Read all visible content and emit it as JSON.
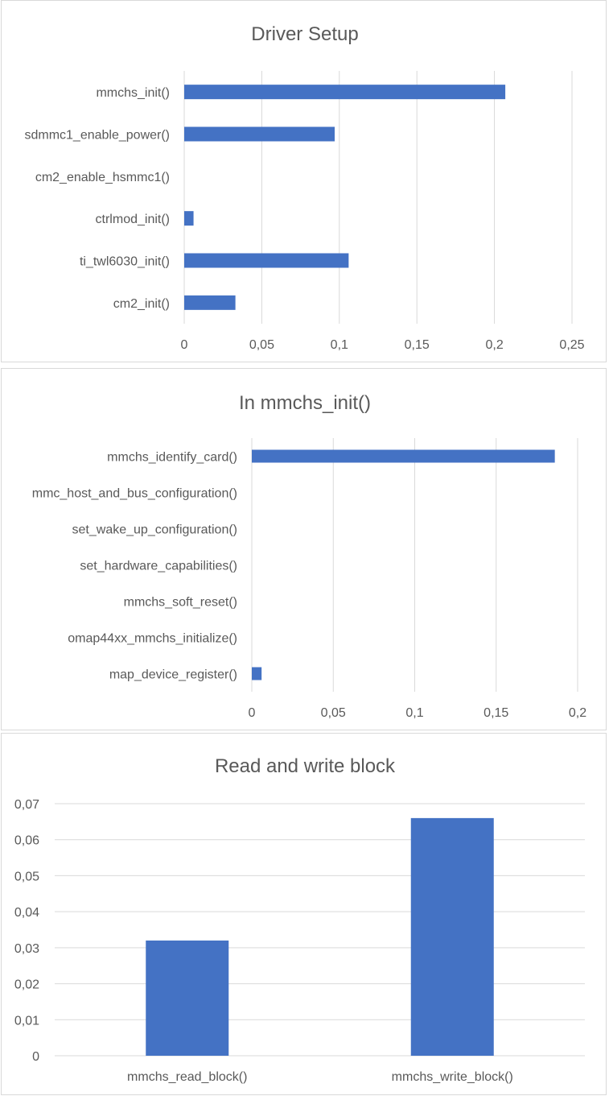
{
  "chart_data": [
    {
      "type": "bar",
      "orientation": "horizontal",
      "title": "Driver Setup",
      "categories": [
        "mmchs_init()",
        "sdmmc1_enable_power()",
        "cm2_enable_hsmmc1()",
        "ctrlmod_init()",
        "ti_twl6030_init()",
        "cm2_init()"
      ],
      "values": [
        0.207,
        0.097,
        0.0,
        0.006,
        0.106,
        0.033
      ],
      "xlim": [
        0,
        0.25
      ],
      "ticks": [
        0,
        0.05,
        0.1,
        0.15,
        0.2,
        0.25
      ],
      "tick_labels": [
        "0",
        "0,05",
        "0,1",
        "0,15",
        "0,2",
        "0,25"
      ],
      "grid": true,
      "bar_color": "#4472c4"
    },
    {
      "type": "bar",
      "orientation": "horizontal",
      "title": "In mmchs_init()",
      "categories": [
        "mmchs_identify_card()",
        "mmc_host_and_bus_configuration()",
        "set_wake_up_configuration()",
        "set_hardware_capabilities()",
        "mmchs_soft_reset()",
        "omap44xx_mmchs_initialize()",
        "map_device_register()"
      ],
      "values": [
        0.186,
        0.0,
        0.0,
        0.0,
        0.0,
        0.0,
        0.006
      ],
      "xlim": [
        0,
        0.2
      ],
      "ticks": [
        0,
        0.05,
        0.1,
        0.15,
        0.2
      ],
      "tick_labels": [
        "0",
        "0,05",
        "0,1",
        "0,15",
        "0,2"
      ],
      "grid": true,
      "bar_color": "#4472c4"
    },
    {
      "type": "bar",
      "orientation": "vertical",
      "title": "Read and write block",
      "categories": [
        "mmchs_read_block()",
        "mmchs_write_block()"
      ],
      "values": [
        0.032,
        0.066
      ],
      "ylim": [
        0,
        0.07
      ],
      "ticks": [
        0,
        0.01,
        0.02,
        0.03,
        0.04,
        0.05,
        0.06,
        0.07
      ],
      "tick_labels": [
        "0",
        "0,01",
        "0,02",
        "0,03",
        "0,04",
        "0,05",
        "0,06",
        "0,07"
      ],
      "grid": true,
      "bar_color": "#4472c4"
    }
  ]
}
